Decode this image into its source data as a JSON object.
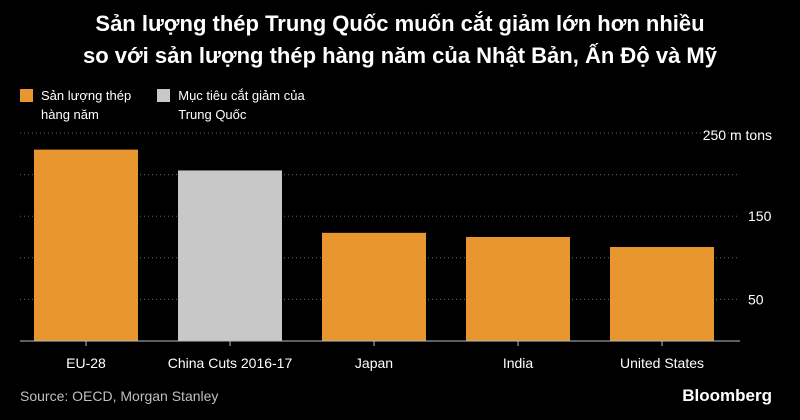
{
  "title_line1": "Sản lượng thép Trung Quốc muốn cắt giảm lớn hơn nhiều",
  "title_line2": "so với sản lượng thép hàng năm của Nhật Bản, Ấn Độ và Mỹ",
  "legend": [
    {
      "label": "Sản lượng thép\nhàng năm",
      "color": "#e8962e"
    },
    {
      "label": "Mục tiêu cắt giảm của\nTrung Quốc",
      "color": "#c8c8c8"
    }
  ],
  "source": "Source: OECD, Morgan Stanley",
  "brand": "Bloomberg",
  "chart_data": {
    "type": "bar",
    "title": "Sản lượng thép Trung Quốc muốn cắt giảm lớn hơn nhiều so với sản lượng thép hàng năm của Nhật Bản, Ấn Độ và Mỹ",
    "categories": [
      "EU-28",
      "China Cuts 2016-17",
      "Japan",
      "India",
      "United States"
    ],
    "values": [
      230,
      205,
      130,
      125,
      113
    ],
    "bar_colors": [
      "#e8962e",
      "#c8c8c8",
      "#e8962e",
      "#e8962e",
      "#e8962e"
    ],
    "ylim": [
      0,
      250
    ],
    "y_ticks": [
      50,
      150,
      250
    ],
    "y_tick_labels": [
      "50",
      "150",
      "250 m tons"
    ],
    "grid": true,
    "y_axis_side": "right",
    "legend_position": "top-left"
  }
}
